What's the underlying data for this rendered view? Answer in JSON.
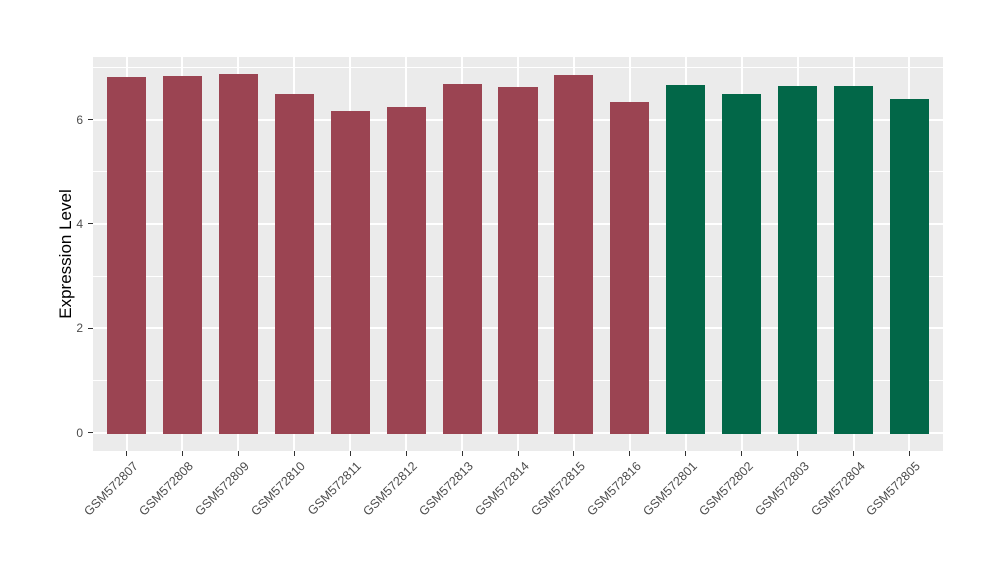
{
  "chart_data": {
    "type": "bar",
    "title": "",
    "xlabel": "",
    "ylabel": "Expression Level",
    "categories": [
      "GSM572807",
      "GSM572808",
      "GSM572809",
      "GSM572810",
      "GSM572811",
      "GSM572812",
      "GSM572813",
      "GSM572814",
      "GSM572815",
      "GSM572816",
      "GSM572801",
      "GSM572802",
      "GSM572803",
      "GSM572804",
      "GSM572805"
    ],
    "values": [
      6.82,
      6.84,
      6.88,
      6.5,
      6.17,
      6.25,
      6.69,
      6.63,
      6.85,
      6.34,
      6.67,
      6.5,
      6.65,
      6.65,
      6.39
    ],
    "bar_groups": [
      "A",
      "A",
      "A",
      "A",
      "A",
      "A",
      "A",
      "A",
      "A",
      "A",
      "B",
      "B",
      "B",
      "B",
      "B"
    ],
    "group_colors": {
      "A": "#9B4452",
      "B": "#026748"
    },
    "yticks": [
      0,
      2,
      4,
      6
    ],
    "minor_gridlines": [
      1,
      3,
      5,
      7
    ],
    "ylim": [
      -0.35,
      7.2
    ],
    "x_padding": 0.6,
    "bar_width_fraction": 0.7,
    "grid": true,
    "legend": "none",
    "x_label_angle_deg": -45,
    "panel_bg": "#EBEBEB",
    "gridline_color": "#FFFFFF",
    "tick_color": "#333333",
    "tick_label_color": "#4D4D4D",
    "axis_title_color": "#000000",
    "background_color": "#FFFFFF"
  }
}
